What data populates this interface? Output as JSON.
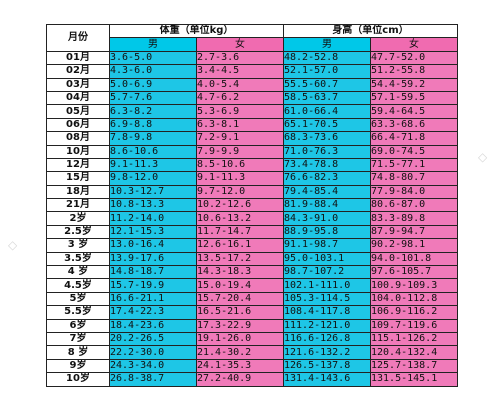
{
  "table": {
    "corner": "月份",
    "weight_header": "体重（单位kg）",
    "height_header": "身高（单位cm）",
    "male": "男",
    "female": "女",
    "rows": [
      {
        "month": "01月",
        "wm": "3.6-5.0",
        "wf": "2.7-3.6",
        "hm": "48.2-52.8",
        "hf": "47.7-52.0"
      },
      {
        "month": "02月",
        "wm": "4.3-6.0",
        "wf": "3.4-4.5",
        "hm": "52.1-57.0",
        "hf": "51.2-55.8"
      },
      {
        "month": "03月",
        "wm": "5.0-6.9",
        "wf": "4.0-5.4",
        "hm": "55.5-60.7",
        "hf": "54.4-59.2"
      },
      {
        "month": "04月",
        "wm": "5.7-7.6",
        "wf": "4.7-6.2",
        "hm": "58.5-63.7",
        "hf": "57.1-59.5"
      },
      {
        "month": "05月",
        "wm": "6.3-8.2",
        "wf": "5.3-6.9",
        "hm": "61.0-66.4",
        "hf": "59.4-64.5"
      },
      {
        "month": "06月",
        "wm": "6.9-8.8",
        "wf": "6.3-8.1",
        "hm": "65.1-70.5",
        "hf": "63.3-68.6"
      },
      {
        "month": "08月",
        "wm": "7.8-9.8",
        "wf": "7.2-9.1",
        "hm": "68.3-73.6",
        "hf": "66.4-71.8"
      },
      {
        "month": "10月",
        "wm": "8.6-10.6",
        "wf": "7.9-9.9",
        "hm": "71.0-76.3",
        "hf": "69.0-74.5"
      },
      {
        "month": "12月",
        "wm": "9.1-11.3",
        "wf": "8.5-10.6",
        "hm": "73.4-78.8",
        "hf": "71.5-77.1"
      },
      {
        "month": "15月",
        "wm": "9.8-12.0",
        "wf": "9.1-11.3",
        "hm": "76.6-82.3",
        "hf": "74.8-80.7"
      },
      {
        "month": "18月",
        "wm": "10.3-12.7",
        "wf": "9.7-12.0",
        "hm": "79.4-85.4",
        "hf": "77.9-84.0"
      },
      {
        "month": "21月",
        "wm": "10.8-13.3",
        "wf": "10.2-12.6",
        "hm": "81.9-88.4",
        "hf": "80.6-87.0"
      },
      {
        "month": "2岁",
        "wm": "11.2-14.0",
        "wf": "10.6-13.2",
        "hm": "84.3-91.0",
        "hf": "83.3-89.8"
      },
      {
        "month": "2.5岁",
        "wm": "12.1-15.3",
        "wf": "11.7-14.7",
        "hm": "88.9-95.8",
        "hf": "87.9-94.7"
      },
      {
        "month": "3 岁",
        "wm": "13.0-16.4",
        "wf": "12.6-16.1",
        "hm": "91.1-98.7",
        "hf": "90.2-98.1"
      },
      {
        "month": "3.5岁",
        "wm": "13.9-17.6",
        "wf": "13.5-17.2",
        "hm": "95.0-103.1",
        "hf": "94.0-101.8"
      },
      {
        "month": "4 岁",
        "wm": "14.8-18.7",
        "wf": "14.3-18.3",
        "hm": "98.7-107.2",
        "hf": "97.6-105.7"
      },
      {
        "month": "4.5岁",
        "wm": "15.7-19.9",
        "wf": "15.0-19.4",
        "hm": "102.1-111.0",
        "hf": "100.9-109.3"
      },
      {
        "month": "5岁",
        "wm": "16.6-21.1",
        "wf": "15.7-20.4",
        "hm": "105.3-114.5",
        "hf": "104.0-112.8"
      },
      {
        "month": "5.5岁",
        "wm": "17.4-22.3",
        "wf": "16.5-21.6",
        "hm": "108.4-117.8",
        "hf": "106.9-116.2"
      },
      {
        "month": "6岁",
        "wm": "18.4-23.6",
        "wf": "17.3-22.9",
        "hm": "111.2-121.0",
        "hf": "109.7-119.6"
      },
      {
        "month": "7岁",
        "wm": "20.2-26.5",
        "wf": "19.1-26.0",
        "hm": "116.6-126.8",
        "hf": "115.1-126.2"
      },
      {
        "month": "8 岁",
        "wm": "22.2-30.0",
        "wf": "21.4-30.2",
        "hm": "121.6-132.2",
        "hf": "120.4-132.4"
      },
      {
        "month": "9岁",
        "wm": "24.3-34.0",
        "wf": "24.1-35.3",
        "hm": "126.5-137.8",
        "hf": "125.7-138.7"
      },
      {
        "month": "10岁",
        "wm": "26.8-38.7",
        "wf": "27.2-40.9",
        "hm": "131.4-143.6",
        "hf": "131.5-145.1"
      }
    ]
  }
}
